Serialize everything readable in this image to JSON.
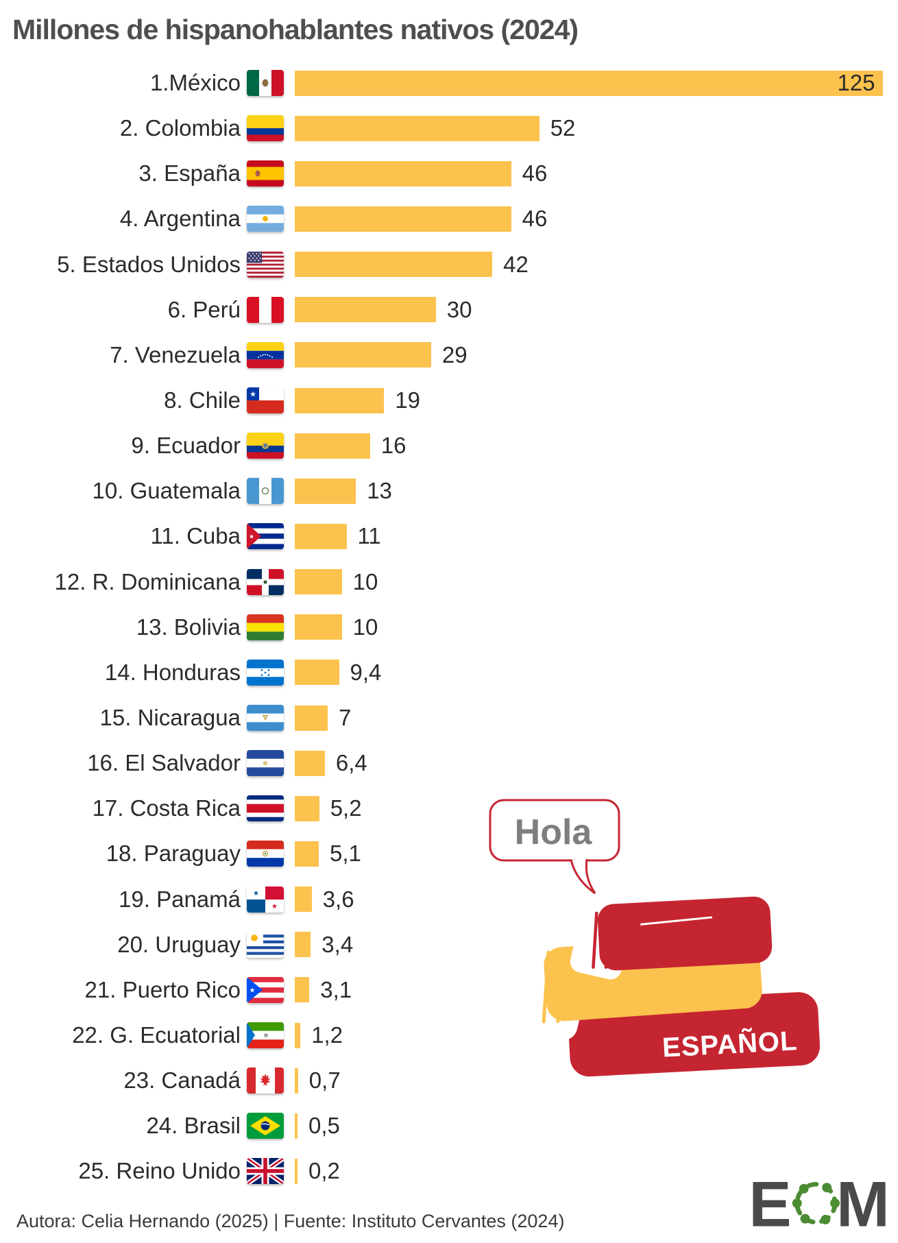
{
  "title": "Millones de hispanohablantes nativos (2024)",
  "footer": "Autora: Celia Hernando (2025) | Fuente: Instituto Cervantes (2024)",
  "logo": {
    "e": "E",
    "m": "M"
  },
  "illustration": {
    "bubble_text": "Hola",
    "book_title": "ESPAÑOL"
  },
  "colors": {
    "bar": "#FCC24E",
    "title_text": "#4E4E4E",
    "label_text": "#2B2B2B",
    "book_red": "#C52531",
    "book_yellow": "#FCC24E",
    "bubble_border": "#C52531",
    "bubble_text": "#7E7E7E",
    "logo_gray": "#4A4A4A",
    "logo_green": "#4C8C33"
  },
  "chart_data": {
    "type": "bar",
    "orientation": "horizontal",
    "title": "Millones de hispanohablantes nativos (2024)",
    "xlabel": "",
    "ylabel": "",
    "xlim": [
      0,
      128
    ],
    "grid": false,
    "legend": "none",
    "categories": [
      "1.México",
      "2. Colombia",
      "3. España",
      "4. Argentina",
      "5. Estados Unidos",
      "6. Perú",
      "7. Venezuela",
      "8. Chile",
      "9. Ecuador",
      "10. Guatemala",
      "11. Cuba",
      "12. R. Dominicana",
      "13. Bolivia",
      "14. Honduras",
      "15. Nicaragua",
      "16. El Salvador",
      "17. Costa Rica",
      "18. Paraguay",
      "19. Panamá",
      "20. Uruguay",
      "21. Puerto Rico",
      "22. G. Ecuatorial",
      "23. Canadá",
      "24. Brasil",
      "25. Reino Unido"
    ],
    "values": [
      125,
      52,
      46,
      46,
      42,
      30,
      29,
      19,
      16,
      13,
      11,
      10,
      10,
      9.4,
      7,
      6.4,
      5.2,
      5.1,
      3.6,
      3.4,
      3.1,
      1.2,
      0.7,
      0.5,
      0.2
    ],
    "value_labels": [
      "125",
      "52",
      "46",
      "46",
      "42",
      "30",
      "29",
      "19",
      "16",
      "13",
      "11",
      "10",
      "10",
      "9,4",
      "7",
      "6,4",
      "5,2",
      "5,1",
      "3,6",
      "3,4",
      "3,1",
      "1,2",
      "0,7",
      "0,5",
      "0,2"
    ],
    "flags": [
      "mx",
      "co",
      "es",
      "ar",
      "us",
      "pe",
      "ve",
      "cl",
      "ec",
      "gt",
      "cu",
      "do",
      "bo",
      "hn",
      "ni",
      "sv",
      "cr",
      "py",
      "pa",
      "uy",
      "pr",
      "gq",
      "ca",
      "br",
      "gb"
    ]
  }
}
